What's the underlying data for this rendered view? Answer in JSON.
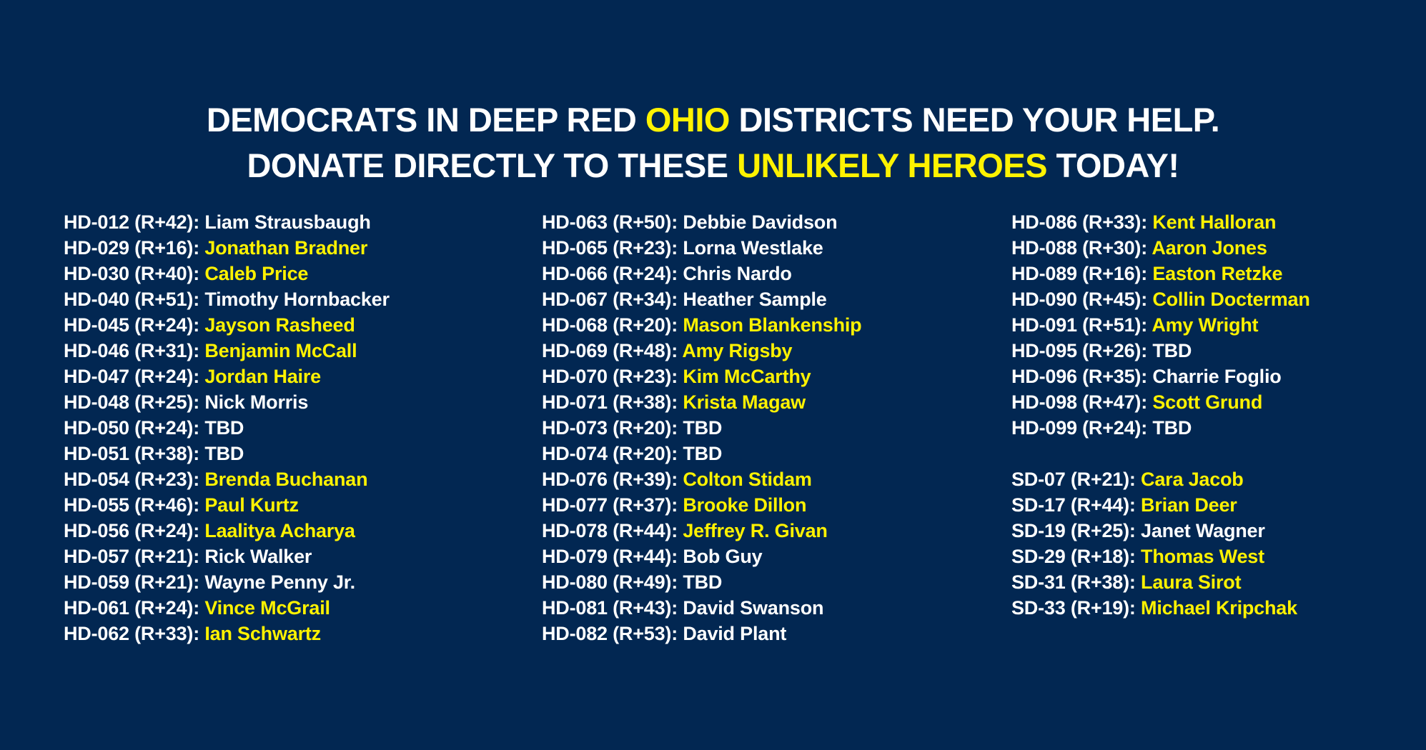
{
  "colors": {
    "background": "#022752",
    "text": "#ffffff",
    "highlight": "#fff200"
  },
  "headline": {
    "line1": {
      "a": "DEMOCRATS IN DEEP RED ",
      "b": "OHIO",
      "c": " DISTRICTS NEED YOUR HELP."
    },
    "line2": {
      "a": "DONATE DIRECTLY TO THESE ",
      "b": "UNLIKELY HEROES",
      "c": " TODAY!"
    }
  },
  "columns": [
    {
      "groups": [
        [
          {
            "district": "HD-012 (R+42):",
            "name": "Liam Strausbaugh",
            "highlight": false
          },
          {
            "district": "HD-029 (R+16):",
            "name": "Jonathan Bradner",
            "highlight": true
          },
          {
            "district": "HD-030 (R+40):",
            "name": "Caleb Price",
            "highlight": true
          },
          {
            "district": "HD-040 (R+51):",
            "name": "Timothy Hornbacker",
            "highlight": false
          },
          {
            "district": "HD-045 (R+24):",
            "name": "Jayson Rasheed",
            "highlight": true
          },
          {
            "district": "HD-046 (R+31):",
            "name": "Benjamin McCall",
            "highlight": true
          },
          {
            "district": "HD-047 (R+24):",
            "name": "Jordan Haire",
            "highlight": true
          },
          {
            "district": "HD-048 (R+25):",
            "name": "Nick Morris",
            "highlight": false
          },
          {
            "district": "HD-050 (R+24):",
            "name": "TBD",
            "highlight": false
          },
          {
            "district": "HD-051 (R+38):",
            "name": "TBD",
            "highlight": false
          },
          {
            "district": "HD-054 (R+23):",
            "name": "Brenda Buchanan",
            "highlight": true
          },
          {
            "district": "HD-055 (R+46):",
            "name": "Paul Kurtz",
            "highlight": true
          },
          {
            "district": "HD-056 (R+24):",
            "name": "Laalitya Acharya",
            "highlight": true
          },
          {
            "district": "HD-057 (R+21):",
            "name": "Rick Walker",
            "highlight": false
          },
          {
            "district": "HD-059 (R+21):",
            "name": "Wayne Penny Jr.",
            "highlight": false
          },
          {
            "district": "HD-061 (R+24):",
            "name": "Vince McGrail",
            "highlight": true
          },
          {
            "district": "HD-062 (R+33):",
            "name": "Ian Schwartz",
            "highlight": true
          }
        ]
      ]
    },
    {
      "groups": [
        [
          {
            "district": "HD-063 (R+50):",
            "name": "Debbie Davidson",
            "highlight": false
          },
          {
            "district": "HD-065 (R+23):",
            "name": "Lorna Westlake",
            "highlight": false
          },
          {
            "district": "HD-066 (R+24):",
            "name": "Chris Nardo",
            "highlight": false
          },
          {
            "district": "HD-067 (R+34):",
            "name": "Heather Sample",
            "highlight": false
          },
          {
            "district": "HD-068 (R+20):",
            "name": "Mason Blankenship",
            "highlight": true
          },
          {
            "district": "HD-069 (R+48):",
            "name": "Amy Rigsby",
            "highlight": true
          },
          {
            "district": "HD-070 (R+23):",
            "name": "Kim McCarthy",
            "highlight": true
          },
          {
            "district": "HD-071 (R+38):",
            "name": "Krista Magaw",
            "highlight": true
          },
          {
            "district": "HD-073 (R+20):",
            "name": "TBD",
            "highlight": false
          },
          {
            "district": "HD-074 (R+20):",
            "name": "TBD",
            "highlight": false
          },
          {
            "district": "HD-076 (R+39):",
            "name": "Colton Stidam",
            "highlight": true
          },
          {
            "district": "HD-077 (R+37):",
            "name": "Brooke Dillon",
            "highlight": true
          },
          {
            "district": "HD-078 (R+44):",
            "name": "Jeffrey R. Givan",
            "highlight": true
          },
          {
            "district": "HD-079 (R+44):",
            "name": "Bob Guy",
            "highlight": false
          },
          {
            "district": "HD-080 (R+49):",
            "name": "TBD",
            "highlight": false
          },
          {
            "district": "HD-081 (R+43):",
            "name": "David Swanson",
            "highlight": false
          },
          {
            "district": "HD-082 (R+53):",
            "name": "David Plant",
            "highlight": false
          }
        ]
      ]
    },
    {
      "groups": [
        [
          {
            "district": "HD-086 (R+33):",
            "name": "Kent Halloran",
            "highlight": true
          },
          {
            "district": "HD-088 (R+30):",
            "name": "Aaron Jones",
            "highlight": true
          },
          {
            "district": "HD-089 (R+16):",
            "name": "Easton Retzke",
            "highlight": true
          },
          {
            "district": "HD-090 (R+45):",
            "name": "Collin Docterman",
            "highlight": true
          },
          {
            "district": "HD-091 (R+51):",
            "name": "Amy Wright",
            "highlight": true
          },
          {
            "district": "HD-095 (R+26):",
            "name": "TBD",
            "highlight": false
          },
          {
            "district": "HD-096 (R+35):",
            "name": "Charrie Foglio",
            "highlight": false
          },
          {
            "district": "HD-098 (R+47):",
            "name": "Scott Grund",
            "highlight": true
          },
          {
            "district": "HD-099 (R+24):",
            "name": "TBD",
            "highlight": false
          }
        ],
        [
          {
            "district": "SD-07 (R+21):",
            "name": "Cara Jacob",
            "highlight": true
          },
          {
            "district": "SD-17 (R+44):",
            "name": "Brian Deer",
            "highlight": true
          },
          {
            "district": "SD-19 (R+25):",
            "name": "Janet Wagner",
            "highlight": false
          },
          {
            "district": "SD-29 (R+18):",
            "name": "Thomas West",
            "highlight": true
          },
          {
            "district": "SD-31 (R+38):",
            "name": "Laura Sirot",
            "highlight": true
          },
          {
            "district": "SD-33 (R+19):",
            "name": "Michael Kripchak",
            "highlight": true
          }
        ]
      ]
    }
  ]
}
